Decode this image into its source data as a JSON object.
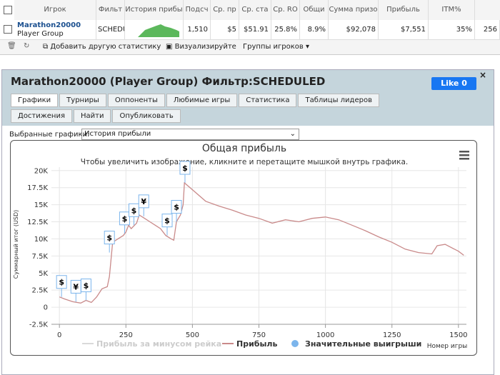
{
  "table": {
    "headers": [
      "Игрок",
      "Фильт",
      "История прибы",
      "Подсч",
      "Ср. пр",
      "Ср. ста",
      "Ср. RO",
      "Общи",
      "Сумма призо",
      "Прибыль",
      "ITM%"
    ],
    "row": {
      "player": "Marathon20000",
      "group": "Player Group",
      "filter": "SCHEDU",
      "stats": [
        "1,510",
        "$5",
        "$51.91",
        "25.8%",
        "8.9%",
        "$92,078",
        "$7,551",
        "35%",
        "256"
      ]
    }
  },
  "toolbar": [
    "Добавить другую статистику",
    "Визуализируйте",
    "Группы игроков"
  ],
  "panel": {
    "title": "Marathon20000 (Player Group) Фильтр:SCHEDULED",
    "like": "Like 0",
    "tabs": [
      "Графики",
      "Турниры",
      "Оппоненты",
      "Любимые игры",
      "Статистика",
      "Таблицы лидеров",
      "Достижения",
      "Найти",
      "Опубликовать"
    ],
    "selector_label": "Выбранные графики:",
    "selected": "История прибыли"
  },
  "chart_data": {
    "type": "line",
    "title": "Общая прибыль",
    "subtitle": "Чтобы увеличить изображение, кликните и перетащите мышкой внутрь графика.",
    "y_label": "Суммарный итог (USD)",
    "x_label": "Номер игры",
    "xlim": [
      -30,
      1530
    ],
    "xticks": [
      0,
      250,
      500,
      750,
      1000,
      1250,
      1500
    ],
    "ylim": [
      -2500,
      20500
    ],
    "yticks": [
      {
        "value": -2500,
        "label": "-2.5K"
      },
      0,
      {
        "value": 2500,
        "label": "2.5K"
      },
      {
        "value": 5000,
        "label": "5K"
      },
      {
        "value": 7500,
        "label": "7.5K"
      },
      {
        "value": 10000,
        "label": "10K"
      },
      {
        "value": 12500,
        "label": "12.5K"
      },
      {
        "value": 15000,
        "label": "15K"
      },
      {
        "value": 17500,
        "label": "17.5K"
      },
      {
        "value": 20000,
        "label": "20K"
      }
    ],
    "grid": true,
    "x": [
      0,
      20,
      50,
      80,
      100,
      120,
      140,
      160,
      180,
      188,
      200,
      220,
      240,
      250,
      260,
      270,
      290,
      300,
      320,
      340,
      360,
      380,
      400,
      420,
      430,
      440,
      455,
      465,
      470,
      500,
      550,
      600,
      650,
      700,
      750,
      800,
      850,
      900,
      950,
      1000,
      1050,
      1100,
      1150,
      1200,
      1250,
      1300,
      1350,
      1400,
      1420,
      1450,
      1500,
      1520
    ],
    "series": [
      {
        "name": "Прибыль",
        "color": "#c98a8a",
        "values": [
          1500,
          1200,
          800,
          600,
          1000,
          700,
          1500,
          2700,
          3000,
          4500,
          9500,
          10000,
          10500,
          11000,
          12000,
          11500,
          12300,
          13500,
          13000,
          12500,
          12000,
          11500,
          10500,
          10000,
          9800,
          12500,
          13500,
          15000,
          18200,
          17200,
          15500,
          14800,
          14200,
          13500,
          13000,
          12300,
          12800,
          12500,
          13000,
          13200,
          12800,
          12000,
          11200,
          10300,
          9500,
          8500,
          8000,
          7800,
          9000,
          9200,
          8200,
          7600
        ]
      }
    ],
    "legend": [
      {
        "name": "Прибыль за минусом рейка",
        "color": "#d9d9d9"
      },
      {
        "name": "Прибыль",
        "color": "#c98a8a"
      },
      {
        "name": "Значительные выигрыши",
        "color": "#7cb5ec"
      }
    ],
    "markers": [
      {
        "x": 8,
        "y": 1500,
        "label": "$"
      },
      {
        "x": 62,
        "y": 800,
        "label": "¥"
      },
      {
        "x": 100,
        "y": 1000,
        "label": "$"
      },
      {
        "x": 188,
        "y": 8000,
        "label": "$"
      },
      {
        "x": 245,
        "y": 10800,
        "label": "$"
      },
      {
        "x": 280,
        "y": 12000,
        "label": "$"
      },
      {
        "x": 317,
        "y": 13300,
        "label": "¥"
      },
      {
        "x": 405,
        "y": 10500,
        "label": "$"
      },
      {
        "x": 440,
        "y": 12500,
        "label": "$"
      },
      {
        "x": 472,
        "y": 18200,
        "label": "$"
      }
    ]
  }
}
